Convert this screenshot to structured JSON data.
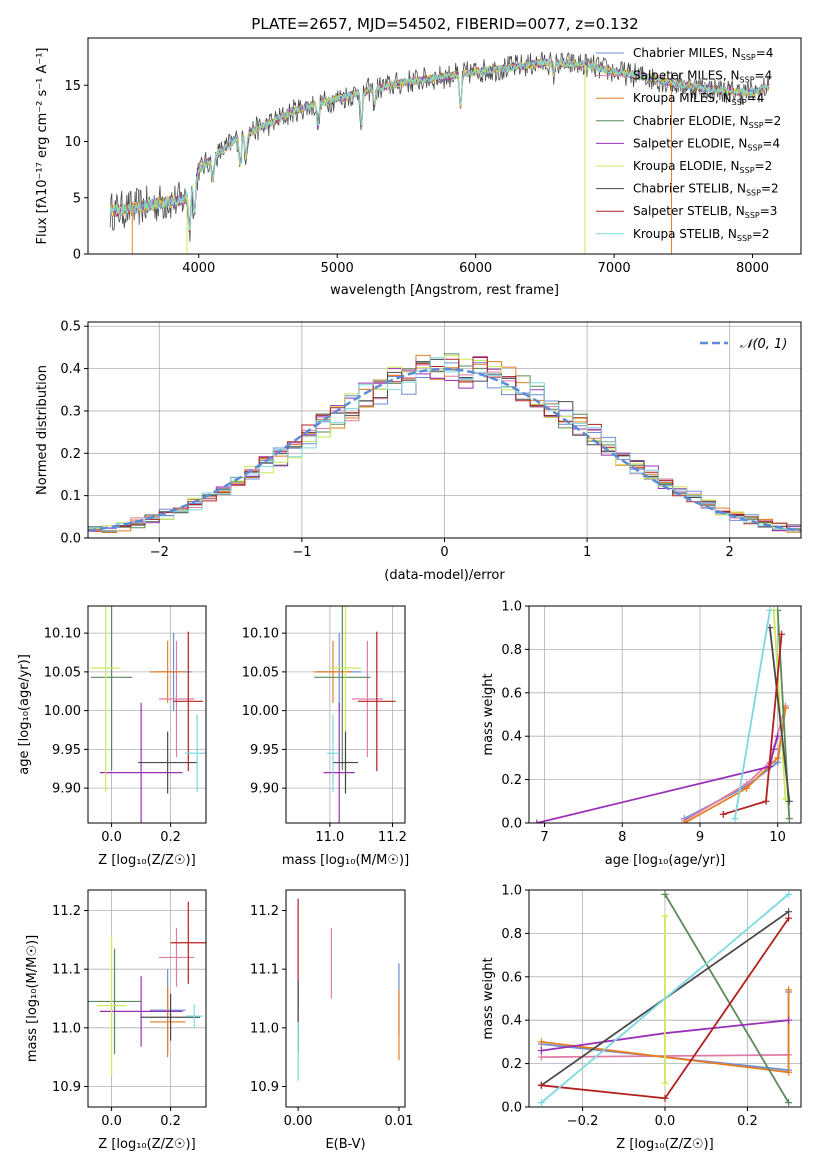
{
  "title": "PLATE=2657, MJD=54502, FIBERID=0077, z=0.132",
  "colors": {
    "Chabrier MILES": "#6d8ed2",
    "Salpeter MILES": "#e17ba8",
    "Kroupa MILES": "#e67e22",
    "Chabrier ELODIE": "#5a8a5a",
    "Salpeter ELODIE": "#9b30b8",
    "Kroupa ELODIE": "#cce85a",
    "Chabrier STELIB": "#4a4a4a",
    "Salpeter STELIB": "#b22020",
    "Kroupa STELIB": "#7dd8e0"
  },
  "chart_data": [
    {
      "id": "spectrum",
      "type": "line",
      "xlabel": "wavelength [Angstrom, rest frame]",
      "ylabel": "Flux [fλ10⁻¹⁷ erg cm⁻² s⁻¹ A⁻¹]",
      "xlim": [
        3200,
        8350
      ],
      "ylim": [
        0,
        19.2
      ],
      "xticks": [
        4000,
        5000,
        6000,
        7000,
        8000
      ],
      "yticks": [
        0,
        5,
        10,
        15
      ],
      "legend_position": "right",
      "legend": [
        {
          "label": "Chabrier MILES, N",
          "sub": "SSP",
          "eq": "=4",
          "color_key": "Chabrier MILES"
        },
        {
          "label": "Salpeter MILES, N",
          "sub": "SSP",
          "eq": "=4",
          "color_key": "Salpeter MILES"
        },
        {
          "label": "Kroupa MILES, N",
          "sub": "SSP",
          "eq": "=4",
          "color_key": "Kroupa MILES"
        },
        {
          "label": "Chabrier ELODIE, N",
          "sub": "SSP",
          "eq": "=2",
          "color_key": "Chabrier ELODIE"
        },
        {
          "label": "Salpeter ELODIE, N",
          "sub": "SSP",
          "eq": "=4",
          "color_key": "Salpeter ELODIE"
        },
        {
          "label": "Kroupa ELODIE, N",
          "sub": "SSP",
          "eq": "=2",
          "color_key": "Kroupa ELODIE"
        },
        {
          "label": "Chabrier STELIB, N",
          "sub": "SSP",
          "eq": "=2",
          "color_key": "Chabrier STELIB"
        },
        {
          "label": "Salpeter STELIB, N",
          "sub": "SSP",
          "eq": "=3",
          "color_key": "Salpeter STELIB"
        },
        {
          "label": "Kroupa STELIB, N",
          "sub": "SSP",
          "eq": "=2",
          "color_key": "Kroupa STELIB"
        }
      ],
      "continuum_knots": {
        "x": [
          3360,
          3500,
          3700,
          3900,
          4000,
          4100,
          4200,
          4300,
          4500,
          4700,
          5000,
          5200,
          5500,
          5800,
          6000,
          6200,
          6500,
          6800,
          7000,
          7200,
          7500,
          7800,
          8000,
          8100
        ],
        "y": [
          3.8,
          4.0,
          4.5,
          4.8,
          7.5,
          8.5,
          9.5,
          10.5,
          11.5,
          12.8,
          13.8,
          14.5,
          15.3,
          15.8,
          16.2,
          16.5,
          17.0,
          16.8,
          16.2,
          15.8,
          15.0,
          14.5,
          14.3,
          14.8
        ]
      },
      "absorption_lines": {
        "x": [
          3934,
          3969,
          4102,
          4300,
          4340,
          4861,
          5175,
          5270,
          5890,
          6563
        ],
        "depth": [
          3.5,
          3.0,
          2.0,
          2.5,
          2.0,
          2.0,
          3.0,
          1.5,
          3.0,
          1.0
        ]
      },
      "spikes": [
        {
          "x": 3520,
          "color_key": "Kroupa MILES"
        },
        {
          "x": 3915,
          "color_key": "Kroupa ELODIE"
        },
        {
          "x": 6790,
          "color_key": "Kroupa MILES"
        },
        {
          "x": 6790,
          "color_key": "Kroupa ELODIE"
        },
        {
          "x": 7415,
          "color_key": "Kroupa MILES"
        }
      ]
    },
    {
      "id": "residuals",
      "type": "histogram",
      "xlabel": "(data-model)/error",
      "ylabel": "Normed distribution",
      "xlim": [
        -2.5,
        2.5
      ],
      "ylim": [
        0,
        0.51
      ],
      "xticks": [
        -2,
        -1,
        0,
        1,
        2
      ],
      "yticks": [
        0.0,
        0.1,
        0.2,
        0.3,
        0.4,
        0.5
      ],
      "bin_width": 0.1,
      "grid": true,
      "gaussian_label": "𝒩(0, 1)",
      "gaussian_color": "#5b8bd6",
      "legend_position": "top-right"
    },
    {
      "id": "age_vs_Z",
      "type": "errorbar",
      "xlabel": "Z [log₁₀(Z/Z☉)]",
      "ylabel": "age  [log₁₀(age/yr)]",
      "xlim": [
        -0.08,
        0.32
      ],
      "ylim": [
        9.855,
        10.135
      ],
      "xticks": [
        0.0,
        0.2
      ],
      "yticks": [
        9.9,
        9.95,
        10.0,
        10.05,
        10.1
      ],
      "grid": true,
      "points": [
        {
          "key": "Chabrier MILES",
          "x": 0.21,
          "y": 10.05,
          "xerr": 0.06,
          "yerr": 0.05
        },
        {
          "key": "Salpeter MILES",
          "x": 0.22,
          "y": 10.015,
          "xerr": 0.06,
          "yerr": 0.075
        },
        {
          "key": "Kroupa MILES",
          "x": 0.19,
          "y": 10.05,
          "xerr": 0.06,
          "yerr": 0.04
        },
        {
          "key": "Chabrier ELODIE",
          "x": 0.0,
          "y": 10.043,
          "xerr": 0.07,
          "yerr": 0.12
        },
        {
          "key": "Salpeter ELODIE",
          "x": 0.1,
          "y": 9.92,
          "xerr": 0.14,
          "yerr": 0.09
        },
        {
          "key": "Kroupa ELODIE",
          "x": -0.02,
          "y": 10.055,
          "xerr": 0.05,
          "yerr": 0.16
        },
        {
          "key": "Chabrier STELIB",
          "x": 0.19,
          "y": 9.933,
          "xerr": 0.1,
          "yerr": 0.04
        },
        {
          "key": "Salpeter STELIB",
          "x": 0.26,
          "y": 10.012,
          "xerr": 0.05,
          "yerr": 0.09
        },
        {
          "key": "Kroupa STELIB",
          "x": 0.29,
          "y": 9.945,
          "xerr": 0.04,
          "yerr": 0.05
        }
      ]
    },
    {
      "id": "age_vs_mass",
      "type": "errorbar",
      "xlabel": "mass [log₁₀(M/M☉)]",
      "ylabel": "",
      "xlim": [
        10.86,
        11.24
      ],
      "ylim": [
        9.855,
        10.135
      ],
      "xticks": [
        11.0,
        11.2
      ],
      "yticks": [
        9.9,
        9.95,
        10.0,
        10.05,
        10.1
      ],
      "grid": true,
      "points": [
        {
          "key": "Chabrier MILES",
          "x": 11.03,
          "y": 10.05,
          "xerr": 0.07,
          "yerr": 0.05
        },
        {
          "key": "Salpeter MILES",
          "x": 11.12,
          "y": 10.015,
          "xerr": 0.05,
          "yerr": 0.075
        },
        {
          "key": "Kroupa MILES",
          "x": 11.01,
          "y": 10.05,
          "xerr": 0.06,
          "yerr": 0.04
        },
        {
          "key": "Chabrier ELODIE",
          "x": 11.04,
          "y": 10.043,
          "xerr": 0.09,
          "yerr": 0.12
        },
        {
          "key": "Salpeter ELODIE",
          "x": 11.03,
          "y": 9.92,
          "xerr": 0.05,
          "yerr": 0.09
        },
        {
          "key": "Kroupa ELODIE",
          "x": 11.05,
          "y": 10.055,
          "xerr": 0.05,
          "yerr": 0.16
        },
        {
          "key": "Chabrier STELIB",
          "x": 11.05,
          "y": 9.933,
          "xerr": 0.04,
          "yerr": 0.04
        },
        {
          "key": "Salpeter STELIB",
          "x": 11.15,
          "y": 10.012,
          "xerr": 0.06,
          "yerr": 0.09
        },
        {
          "key": "Kroupa STELIB",
          "x": 11.01,
          "y": 9.945,
          "xerr": 0.02,
          "yerr": 0.05
        }
      ]
    },
    {
      "id": "weight_vs_age",
      "type": "line",
      "xlabel": "age  [log₁₀(age/yr)]",
      "ylabel": "mass weight",
      "xlim": [
        6.8,
        10.3
      ],
      "ylim": [
        0,
        1.0
      ],
      "xticks": [
        7,
        8,
        9,
        10
      ],
      "yticks": [
        0.0,
        0.2,
        0.4,
        0.6,
        0.8,
        1.0
      ],
      "grid": true,
      "series": [
        {
          "key": "Chabrier MILES",
          "x": [
            8.8,
            9.6,
            10.0,
            10.1
          ],
          "y": [
            0.02,
            0.17,
            0.28,
            0.53
          ]
        },
        {
          "key": "Salpeter MILES",
          "x": [
            8.8,
            9.6,
            9.9,
            10.1
          ],
          "y": [
            0.01,
            0.18,
            0.28,
            0.54
          ]
        },
        {
          "key": "Kroupa MILES",
          "x": [
            8.8,
            9.6,
            10.0,
            10.1
          ],
          "y": [
            0.0,
            0.16,
            0.3,
            0.53
          ]
        },
        {
          "key": "Chabrier ELODIE",
          "x": [
            10.0,
            10.15
          ],
          "y": [
            0.98,
            0.02
          ]
        },
        {
          "key": "Salpeter ELODIE",
          "x": [
            6.9,
            9.9,
            9.95,
            10.0
          ],
          "y": [
            0.0,
            0.26,
            0.34,
            0.4
          ]
        },
        {
          "key": "Kroupa ELODIE",
          "x": [
            9.95,
            10.1
          ],
          "y": [
            0.98,
            0.11
          ]
        },
        {
          "key": "Chabrier STELIB",
          "x": [
            9.9,
            10.15
          ],
          "y": [
            0.9,
            0.1
          ]
        },
        {
          "key": "Salpeter STELIB",
          "x": [
            9.3,
            9.85,
            10.05
          ],
          "y": [
            0.04,
            0.1,
            0.87
          ]
        },
        {
          "key": "Kroupa STELIB",
          "x": [
            9.45,
            9.9
          ],
          "y": [
            0.02,
            0.98
          ]
        }
      ]
    },
    {
      "id": "mass_vs_Z",
      "type": "errorbar",
      "xlabel": "Z [log₁₀(Z/Z☉)]",
      "ylabel": "mass [log₁₀(M/M☉)]",
      "xlim": [
        -0.08,
        0.32
      ],
      "ylim": [
        10.865,
        11.235
      ],
      "xticks": [
        0.0,
        0.2
      ],
      "yticks": [
        10.9,
        11.0,
        11.1,
        11.2
      ],
      "grid": true,
      "points": [
        {
          "key": "Chabrier MILES",
          "x": 0.19,
          "y": 11.03,
          "xerr": 0.06,
          "yerr": 0.07
        },
        {
          "key": "Salpeter MILES",
          "x": 0.22,
          "y": 11.12,
          "xerr": 0.06,
          "yerr": 0.05
        },
        {
          "key": "Kroupa MILES",
          "x": 0.19,
          "y": 11.01,
          "xerr": 0.06,
          "yerr": 0.06
        },
        {
          "key": "Chabrier ELODIE",
          "x": 0.01,
          "y": 11.045,
          "xerr": 0.09,
          "yerr": 0.09
        },
        {
          "key": "Salpeter ELODIE",
          "x": 0.1,
          "y": 11.028,
          "xerr": 0.14,
          "yerr": 0.06
        },
        {
          "key": "Kroupa ELODIE",
          "x": 0.0,
          "y": 11.038,
          "xerr": 0.05,
          "yerr": 0.12
        },
        {
          "key": "Chabrier STELIB",
          "x": 0.2,
          "y": 11.018,
          "xerr": 0.1,
          "yerr": 0.04
        },
        {
          "key": "Salpeter STELIB",
          "x": 0.26,
          "y": 11.145,
          "xerr": 0.06,
          "yerr": 0.07
        },
        {
          "key": "Kroupa STELIB",
          "x": 0.28,
          "y": 11.02,
          "xerr": 0.03,
          "yerr": 0.02
        }
      ]
    },
    {
      "id": "mass_vs_ebv",
      "type": "errorbar",
      "xlabel": "E(B-V)",
      "ylabel": "",
      "xlim": [
        -0.0012,
        0.0106
      ],
      "ylim": [
        10.865,
        11.235
      ],
      "xticks": [
        0.0,
        0.01
      ],
      "yticks": [
        10.9,
        11.0,
        11.1,
        11.2
      ],
      "grid": false,
      "points": [
        {
          "key": "Chabrier MILES",
          "x": 0.01,
          "y": 11.05,
          "xerr": 0,
          "yerr": 0.06
        },
        {
          "key": "Salpeter MILES",
          "x": 0.0033,
          "y": 11.11,
          "xerr": 0,
          "yerr": 0.06
        },
        {
          "key": "Kroupa MILES",
          "x": 0.01,
          "y": 11.005,
          "xerr": 0,
          "yerr": 0.06
        },
        {
          "key": "Chabrier ELODIE",
          "x": 0.0,
          "y": 11.02,
          "xerr": 0,
          "yerr": 0.06
        },
        {
          "key": "Salpeter ELODIE",
          "x": 0.0,
          "y": 11.03,
          "xerr": 0,
          "yerr": 0.05
        },
        {
          "key": "Kroupa ELODIE",
          "x": 0.0,
          "y": 10.97,
          "xerr": 0,
          "yerr": 0.06
        },
        {
          "key": "Chabrier STELIB",
          "x": 0.0,
          "y": 11.02,
          "xerr": 0,
          "yerr": 0.06
        },
        {
          "key": "Salpeter STELIB",
          "x": 0.0,
          "y": 11.15,
          "xerr": 0,
          "yerr": 0.07
        },
        {
          "key": "Kroupa STELIB",
          "x": 0.0,
          "y": 10.96,
          "xerr": 0,
          "yerr": 0.05
        }
      ]
    },
    {
      "id": "weight_vs_Z",
      "type": "line",
      "xlabel": "Z [log₁₀(Z/Z☉)]",
      "ylabel": "mass weight",
      "xlim": [
        -0.33,
        0.33
      ],
      "ylim": [
        0,
        1.0
      ],
      "xticks": [
        -0.2,
        0.0,
        0.2
      ],
      "yticks": [
        0.0,
        0.2,
        0.4,
        0.6,
        0.8,
        1.0
      ],
      "grid": true,
      "series": [
        {
          "key": "Chabrier MILES",
          "x": [
            -0.3,
            0.3,
            0.3
          ],
          "y": [
            0.29,
            0.17,
            0.53
          ]
        },
        {
          "key": "Salpeter MILES",
          "x": [
            -0.3,
            0.3
          ],
          "y": [
            0.23,
            0.24
          ]
        },
        {
          "key": "Kroupa MILES",
          "x": [
            -0.3,
            0.3,
            0.3
          ],
          "y": [
            0.3,
            0.16,
            0.54
          ]
        },
        {
          "key": "Chabrier ELODIE",
          "x": [
            0.0,
            0.3
          ],
          "y": [
            0.98,
            0.02
          ]
        },
        {
          "key": "Salpeter ELODIE",
          "x": [
            -0.3,
            0.0,
            0.3
          ],
          "y": [
            0.26,
            0.34,
            0.4
          ]
        },
        {
          "key": "Kroupa ELODIE",
          "x": [
            0.0,
            0.0
          ],
          "y": [
            0.88,
            0.11
          ]
        },
        {
          "key": "Chabrier STELIB",
          "x": [
            -0.3,
            0.3
          ],
          "y": [
            0.1,
            0.9
          ]
        },
        {
          "key": "Salpeter STELIB",
          "x": [
            -0.3,
            0.0,
            0.3
          ],
          "y": [
            0.1,
            0.04,
            0.87
          ]
        },
        {
          "key": "Kroupa STELIB",
          "x": [
            -0.3,
            0.3
          ],
          "y": [
            0.02,
            0.98
          ]
        }
      ]
    }
  ]
}
